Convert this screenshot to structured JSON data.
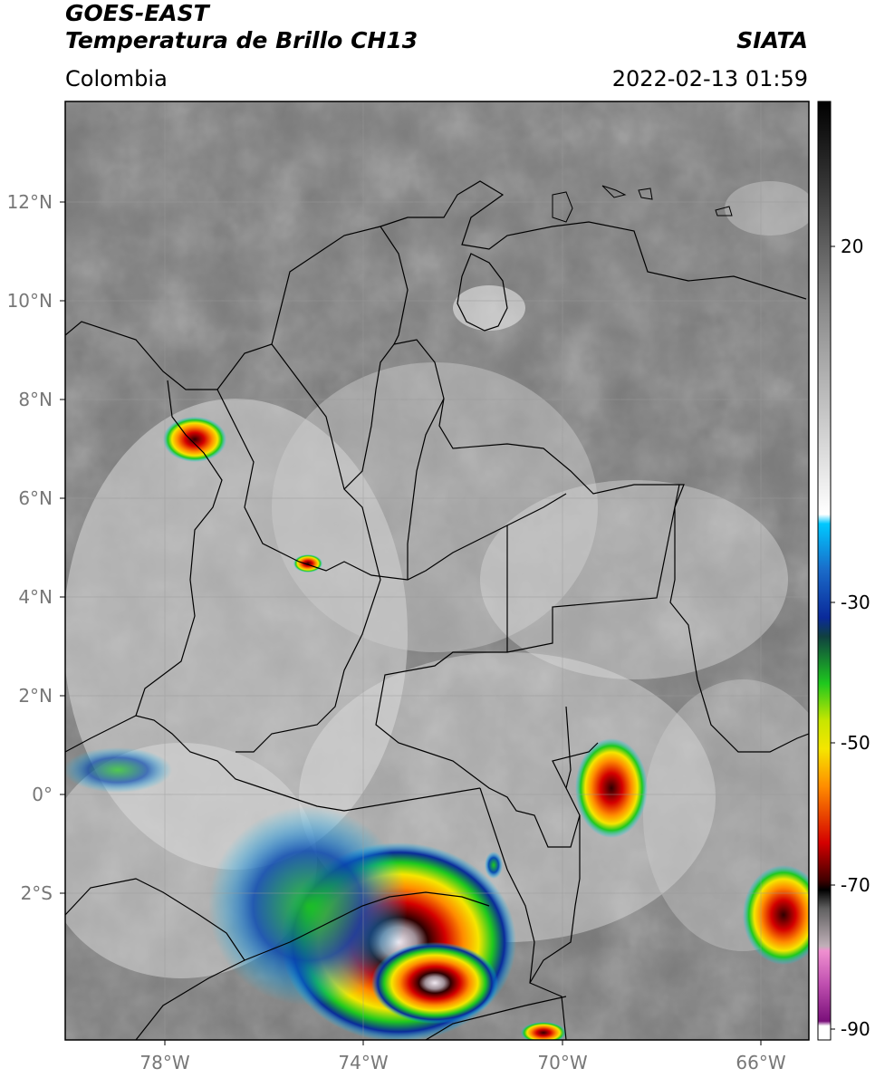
{
  "header": {
    "line1": "GOES-EAST",
    "line2": "Temperatura de Brillo CH13",
    "region": "Colombia",
    "org": "SIATA",
    "datetime": "2022-02-13 01:59"
  },
  "map": {
    "lat_labels": [
      "12°N",
      "10°N",
      "8°N",
      "6°N",
      "4°N",
      "2°N",
      "0°",
      "2°S"
    ],
    "lon_labels": [
      "78°W",
      "74°W",
      "70°W",
      "66°W"
    ]
  },
  "colorbar": {
    "ticks": [
      "20",
      "-30",
      "-50",
      "-70",
      "-90"
    ],
    "colors": {
      "black": "#000000",
      "gray": "#8a8a8a",
      "white": "#ffffff",
      "cyan": "#00c8ff",
      "blue": "#0a2a9a",
      "green": "#1ec81e",
      "yellow": "#f5e600",
      "orange": "#ff8c00",
      "red": "#d40000",
      "dark_red": "#400000",
      "pink": "#e070c0",
      "purple": "#8c1a8c"
    }
  }
}
